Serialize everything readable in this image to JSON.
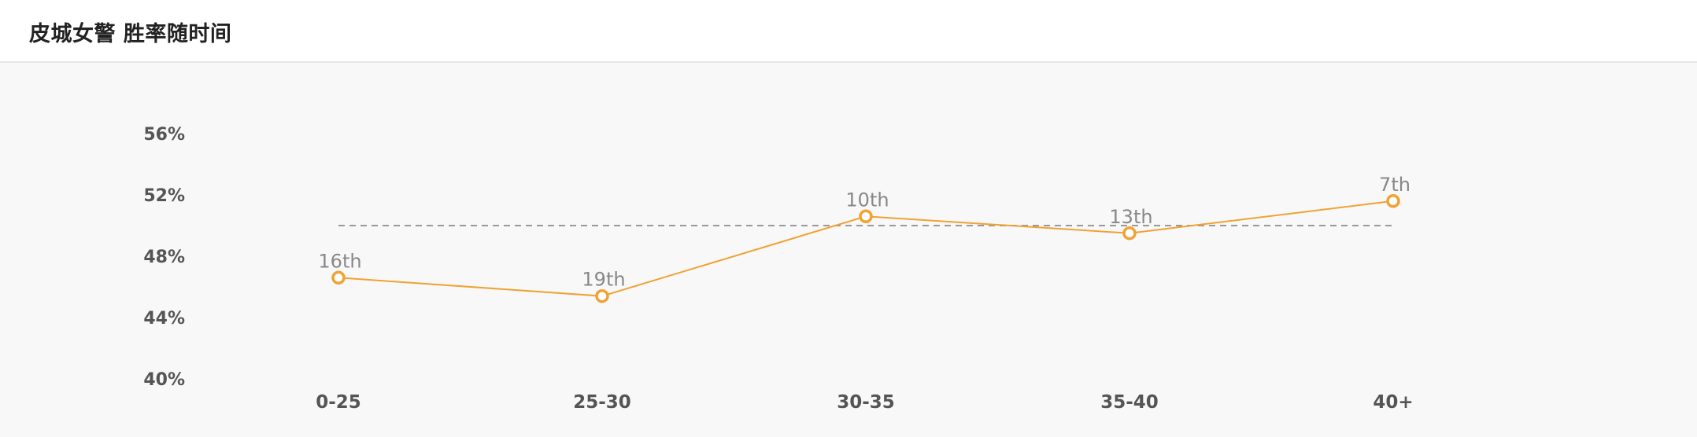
{
  "header": {
    "title": "皮城女警 胜率随时间"
  },
  "colors": {
    "line": "#f0a233",
    "point_fill": "#ffffff",
    "reference_line": "#999999",
    "tick_text": "#555555",
    "label_text": "#888888"
  },
  "chart_data": {
    "type": "line",
    "title": "皮城女警 胜率随时间",
    "xlabel": "",
    "ylabel": "",
    "categories": [
      "0-25",
      "25-30",
      "30-35",
      "35-40",
      "40+"
    ],
    "series": [
      {
        "values": [
          46.6,
          45.4,
          50.6,
          49.5,
          51.6
        ],
        "data_labels": [
          "16th",
          "19th",
          "10th",
          "13th",
          "7th"
        ]
      }
    ],
    "reference_line": 50,
    "y_ticks": [
      "40%",
      "44%",
      "48%",
      "52%",
      "56%"
    ],
    "y_tick_values": [
      40,
      44,
      48,
      52,
      56
    ],
    "ylim": [
      40,
      56
    ],
    "grid": false,
    "legend": "none"
  }
}
